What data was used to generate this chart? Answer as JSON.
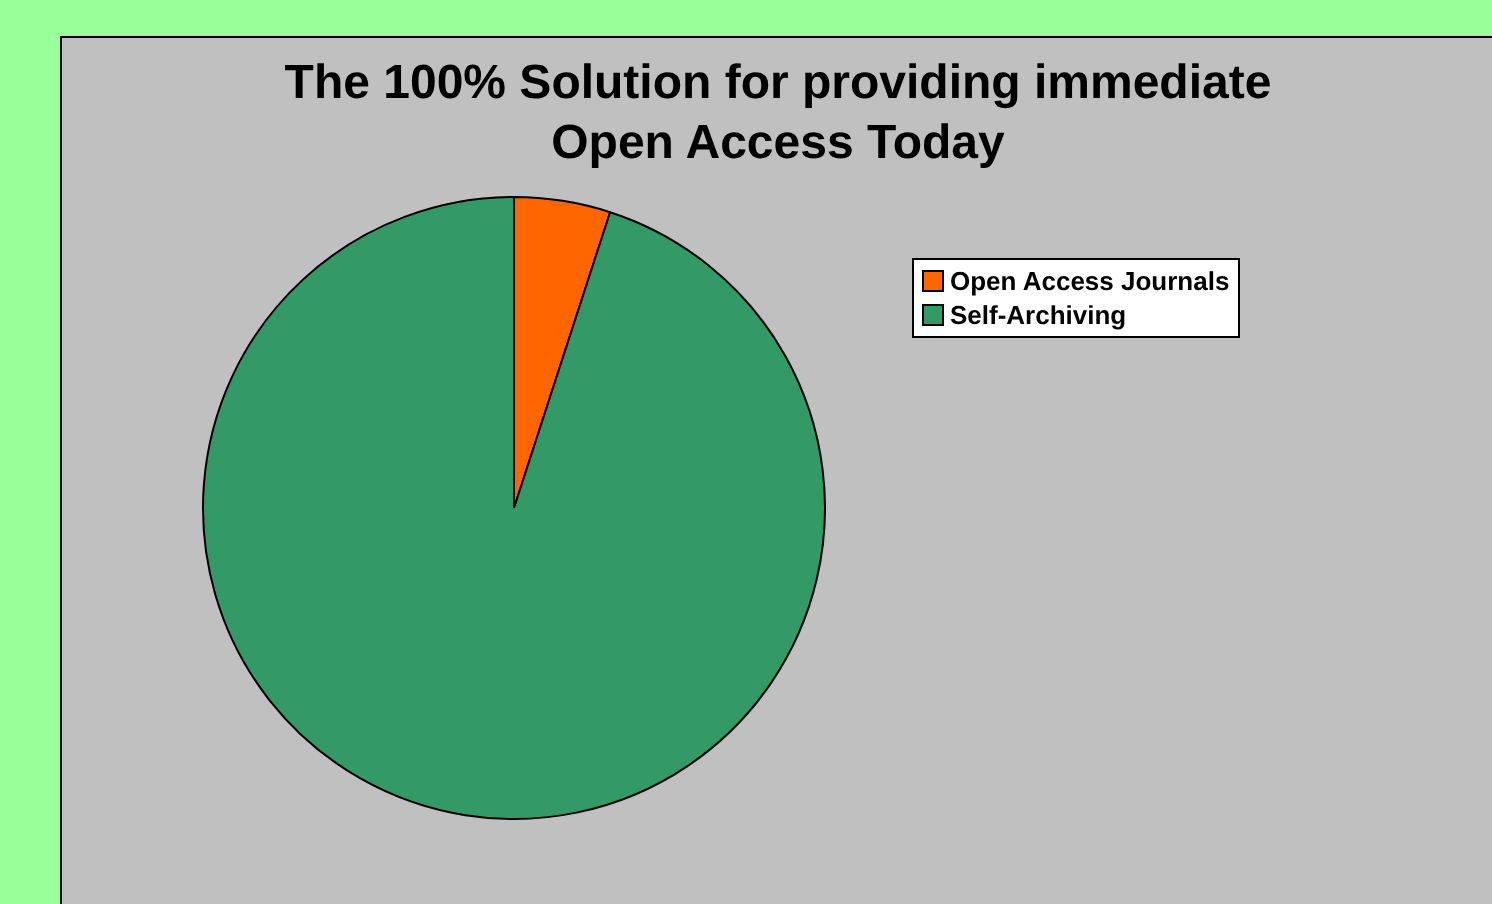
{
  "chart_data": {
    "type": "pie",
    "title": "The 100% Solution for providing immediate Open Access Today",
    "categories": [
      "Open Access Journals",
      "Self-Archiving"
    ],
    "values": [
      5,
      95
    ],
    "colors": [
      "#ff6600",
      "#339966"
    ],
    "legend": "top right"
  }
}
